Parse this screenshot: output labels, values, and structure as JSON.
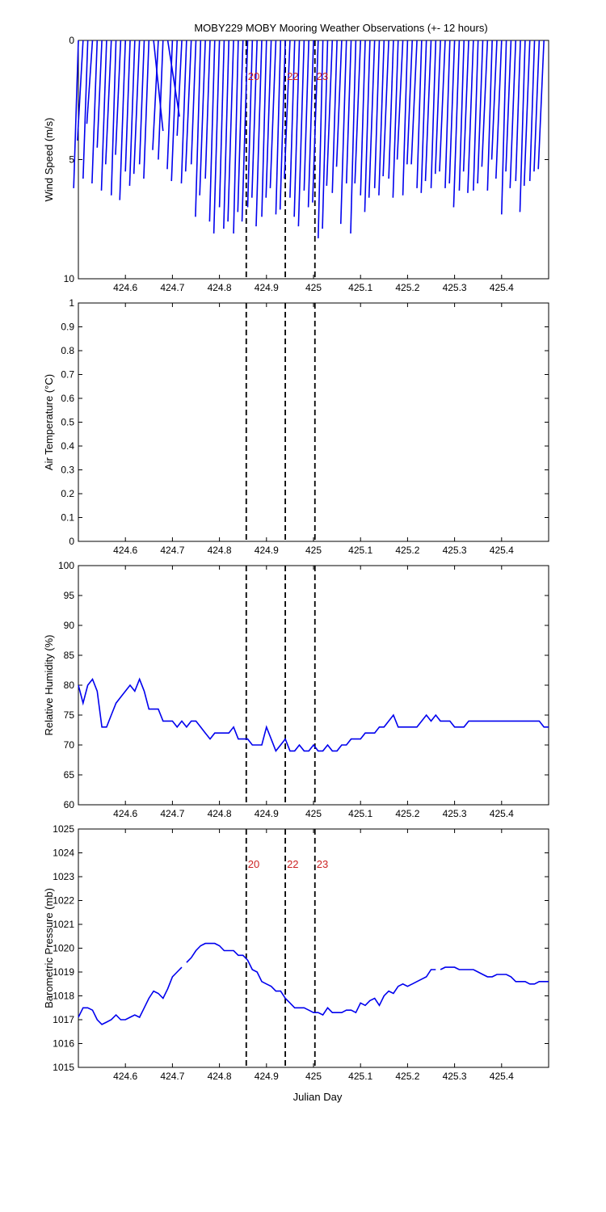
{
  "figure_title": "MOBY229 MOBY Mooring Weather Observations (+- 12 hours)",
  "colors": {
    "data": "#0000ee",
    "event_label": "#cc2222",
    "axis": "#000000"
  },
  "chart_data": [
    {
      "type": "line",
      "subtype": "wind-barbs",
      "title": "MOBY229 MOBY Mooring Weather Observations (+- 12 hours)",
      "ylabel": "Wind Speed (m/s)",
      "xlabel": "",
      "xlim": [
        424.5,
        425.5
      ],
      "ylim": [
        0,
        10
      ],
      "y_reversed": true,
      "xticks": [
        424.6,
        424.7,
        424.8,
        424.9,
        425,
        425.1,
        425.2,
        425.3,
        425.4
      ],
      "yticks": [
        0,
        5,
        10
      ],
      "event_lines": [
        424.857,
        424.94,
        425.003
      ],
      "event_labels": [
        "20",
        "22",
        "23"
      ],
      "series": [
        {
          "x": [
            424.5,
            424.51,
            424.52,
            424.53,
            424.54,
            424.55,
            424.56,
            424.57,
            424.58,
            424.59,
            424.6,
            424.61,
            424.62,
            424.63,
            424.64,
            424.65,
            424.66,
            424.67,
            424.68,
            424.69,
            424.7,
            424.71,
            424.72,
            424.73,
            424.74,
            424.75,
            424.76,
            424.77,
            424.78,
            424.79,
            424.8,
            424.81,
            424.82,
            424.83,
            424.84,
            424.85,
            424.86,
            424.87,
            424.88,
            424.89,
            424.9,
            424.91,
            424.92,
            424.93,
            424.94,
            424.95,
            424.96,
            424.97,
            424.98,
            424.99,
            425,
            425.01,
            425.02,
            425.03,
            425.04,
            425.05,
            425.06,
            425.07,
            425.08,
            425.09,
            425.1,
            425.11,
            425.12,
            425.13,
            425.14,
            425.15,
            425.16,
            425.17,
            425.18,
            425.19,
            425.2,
            425.21,
            425.22,
            425.23,
            425.24,
            425.25,
            425.26,
            425.27,
            425.28,
            425.29,
            425.3,
            425.31,
            425.32,
            425.33,
            425.34,
            425.35,
            425.36,
            425.37,
            425.38,
            425.39,
            425.4,
            425.41,
            425.42,
            425.43,
            425.44,
            425.45,
            425.46,
            425.47,
            425.48,
            425.49
          ],
          "dx": [
            -0.01,
            -0.012,
            -0.01,
            -0.012,
            -0.011,
            -0.01,
            -0.011,
            -0.012,
            -0.01,
            -0.011,
            -0.012,
            -0.01,
            -0.011,
            -0.012,
            -0.01,
            -0.011,
            0.02,
            -0.012,
            -0.01,
            0.025,
            -0.011,
            -0.012,
            -0.01,
            -0.011,
            -0.012,
            -0.01,
            -0.011,
            -0.012,
            -0.01,
            -0.011,
            -0.012,
            -0.01,
            -0.011,
            -0.012,
            -0.01,
            -0.011,
            -0.012,
            -0.01,
            -0.011,
            -0.012,
            -0.01,
            -0.011,
            -0.012,
            -0.01,
            -0.011,
            -0.012,
            -0.01,
            -0.011,
            -0.012,
            -0.01,
            -0.011,
            -0.012,
            -0.01,
            -0.011,
            -0.012,
            -0.01,
            -0.011,
            -0.012,
            -0.01,
            -0.011,
            -0.012,
            -0.01,
            -0.011,
            -0.012,
            -0.01,
            -0.011,
            -0.012,
            -0.01,
            -0.011,
            -0.012,
            -0.01,
            -0.011,
            -0.012,
            -0.01,
            -0.011,
            -0.012,
            -0.01,
            -0.011,
            -0.012,
            -0.01,
            -0.011,
            -0.012,
            -0.01,
            -0.011,
            -0.012,
            -0.01,
            -0.011,
            -0.012,
            -0.01,
            -0.011,
            -0.012,
            -0.01,
            -0.011,
            -0.012,
            -0.01,
            -0.011,
            -0.012,
            -0.01,
            -0.011,
            -0.012
          ],
          "y": [
            6.2,
            4.2,
            5.8,
            3.5,
            6.0,
            4.5,
            6.3,
            5.2,
            6.5,
            4.8,
            6.7,
            5.5,
            6.1,
            5.6,
            5.2,
            5.8,
            3.8,
            4.6,
            5.0,
            3.2,
            5.4,
            5.9,
            4.0,
            6.0,
            5.5,
            5.2,
            7.4,
            6.5,
            5.8,
            7.6,
            8.1,
            7.0,
            7.9,
            7.6,
            8.1,
            7.2,
            7.6,
            7.0,
            6.6,
            7.8,
            7.4,
            6.6,
            6.2,
            7.3,
            7.1,
            5.8,
            6.6,
            7.4,
            7.8,
            6.3,
            7.0,
            6.8,
            8.3,
            7.9,
            6.1,
            6.4,
            5.3,
            7.7,
            6.0,
            8.1,
            6.0,
            6.5,
            7.2,
            6.6,
            6.2,
            6.5,
            5.7,
            5.8,
            6.6,
            5.0,
            6.5,
            5.2,
            5.2,
            6.2,
            6.4,
            5.9,
            6.2,
            5.6,
            5.5,
            6.2,
            6.0,
            7.0,
            6.3,
            5.5,
            6.4,
            6.3,
            6.0,
            5.3,
            6.3,
            5.0,
            5.8,
            7.3,
            5.5,
            6.2,
            5.9,
            7.2,
            6.1,
            5.9,
            5.5,
            5.4
          ]
        }
      ]
    },
    {
      "type": "line",
      "title": "",
      "ylabel": "Air Temperature (°C)",
      "xlabel": "",
      "xlim": [
        424.5,
        425.5
      ],
      "ylim": [
        0,
        1
      ],
      "xticks": [
        424.6,
        424.7,
        424.8,
        424.9,
        425,
        425.1,
        425.2,
        425.3,
        425.4
      ],
      "yticks": [
        0,
        0.1,
        0.2,
        0.3,
        0.4,
        0.5,
        0.6,
        0.7,
        0.8,
        0.9,
        1
      ],
      "event_lines": [
        424.857,
        424.94,
        425.003
      ],
      "series": []
    },
    {
      "type": "line",
      "title": "",
      "ylabel": "Relative Humidity (%)",
      "xlabel": "",
      "xlim": [
        424.5,
        425.5
      ],
      "ylim": [
        60,
        100
      ],
      "xticks": [
        424.6,
        424.7,
        424.8,
        424.9,
        425,
        425.1,
        425.2,
        425.3,
        425.4
      ],
      "yticks": [
        60,
        65,
        70,
        75,
        80,
        85,
        90,
        95,
        100
      ],
      "event_lines": [
        424.857,
        424.94,
        425.003
      ],
      "series": [
        {
          "x": [
            424.5,
            424.51,
            424.52,
            424.53,
            424.54,
            424.55,
            424.56,
            424.57,
            424.58,
            424.59,
            424.6,
            424.61,
            424.62,
            424.63,
            424.64,
            424.65,
            424.66,
            424.67,
            424.68,
            424.69,
            424.7,
            424.71,
            424.72,
            424.73,
            424.74,
            424.75,
            424.76,
            424.77,
            424.78,
            424.79,
            424.8,
            424.81,
            424.82,
            424.83,
            424.84,
            424.85,
            424.86,
            424.87,
            424.88,
            424.89,
            424.9,
            424.91,
            424.92,
            424.93,
            424.94,
            424.95,
            424.96,
            424.97,
            424.98,
            424.99,
            425,
            425.01,
            425.02,
            425.03,
            425.04,
            425.05,
            425.06,
            425.07,
            425.08,
            425.09,
            425.1,
            425.11,
            425.12,
            425.13,
            425.14,
            425.15,
            425.16,
            425.17,
            425.18,
            425.19,
            425.2,
            425.21,
            425.22,
            425.23,
            425.24,
            425.25,
            425.26,
            425.27,
            425.28,
            425.29,
            425.3,
            425.31,
            425.32,
            425.33,
            425.34,
            425.35,
            425.36,
            425.37,
            425.38,
            425.39,
            425.4,
            425.41,
            425.42,
            425.43,
            425.44,
            425.45,
            425.46,
            425.47,
            425.48,
            425.49,
            425.5
          ],
          "y": [
            80,
            77,
            80,
            81,
            79,
            73,
            73,
            75,
            77,
            78,
            79,
            80,
            79,
            81,
            79,
            76,
            76,
            76,
            74,
            74,
            74,
            73,
            74,
            73,
            74,
            74,
            73,
            72,
            71,
            72,
            72,
            72,
            72,
            73,
            71,
            71,
            71,
            70,
            70,
            70,
            73,
            71,
            69,
            70,
            71,
            69,
            69,
            70,
            69,
            69,
            70,
            69,
            69,
            70,
            69,
            69,
            70,
            70,
            71,
            71,
            71,
            72,
            72,
            72,
            73,
            73,
            74,
            75,
            73,
            73,
            73,
            73,
            73,
            74,
            75,
            74,
            75,
            74,
            74,
            74,
            73,
            73,
            73,
            74,
            74,
            74,
            74,
            74,
            74,
            74,
            74,
            74,
            74,
            74,
            74,
            74,
            74,
            74,
            74,
            73,
            73
          ]
        }
      ]
    },
    {
      "type": "line",
      "title": "",
      "ylabel": "Barometric Pressure (mb)",
      "xlabel": "Julian Day",
      "xlim": [
        424.5,
        425.5
      ],
      "ylim": [
        1015,
        1025
      ],
      "xticks": [
        424.6,
        424.7,
        424.8,
        424.9,
        425,
        425.1,
        425.2,
        425.3,
        425.4
      ],
      "yticks": [
        1015,
        1016,
        1017,
        1018,
        1019,
        1020,
        1021,
        1022,
        1023,
        1024,
        1025
      ],
      "event_lines": [
        424.857,
        424.94,
        425.003
      ],
      "event_labels": [
        "20",
        "22",
        "23"
      ],
      "series": [
        {
          "x": [
            424.5,
            424.51,
            424.52,
            424.53,
            424.54,
            424.55,
            424.56,
            424.57,
            424.58,
            424.59,
            424.6,
            424.61,
            424.62,
            424.63,
            424.64,
            424.65,
            424.66,
            424.67,
            424.68,
            424.69,
            424.7,
            424.71,
            424.72,
            424.73,
            424.74,
            424.75,
            424.76,
            424.77,
            424.78,
            424.79,
            424.8,
            424.81,
            424.82,
            424.83,
            424.84,
            424.85,
            424.86,
            424.87,
            424.88,
            424.89,
            424.9,
            424.91,
            424.92,
            424.93,
            424.94,
            424.95,
            424.96,
            424.97,
            424.98,
            424.99,
            425,
            425.01,
            425.02,
            425.03,
            425.04,
            425.05,
            425.06,
            425.07,
            425.08,
            425.09,
            425.1,
            425.11,
            425.12,
            425.13,
            425.14,
            425.15,
            425.16,
            425.17,
            425.18,
            425.19,
            425.2,
            425.21,
            425.22,
            425.23,
            425.24,
            425.25,
            425.26,
            425.27,
            425.28,
            425.29,
            425.3,
            425.31,
            425.32,
            425.33,
            425.34,
            425.35,
            425.36,
            425.37,
            425.38,
            425.39,
            425.4,
            425.41,
            425.42,
            425.43,
            425.44,
            425.45,
            425.46,
            425.47,
            425.48,
            425.49,
            425.5
          ],
          "y": [
            1017.1,
            1017.5,
            1017.5,
            1017.4,
            1017.0,
            1016.8,
            1016.9,
            1017.0,
            1017.2,
            1017.0,
            1017.0,
            1017.1,
            1017.2,
            1017.1,
            1017.5,
            1017.9,
            1018.2,
            1018.1,
            1017.9,
            1018.3,
            1018.8,
            1019.0,
            1019.2,
            1019.4,
            1019.6,
            1019.9,
            1020.1,
            1020.2,
            1020.2,
            1020.2,
            1020.1,
            1019.9,
            1019.9,
            1019.9,
            1019.7,
            1019.7,
            1019.5,
            1019.1,
            1019.0,
            1018.6,
            1018.5,
            1018.4,
            1018.2,
            1018.2,
            1017.9,
            1017.7,
            1017.5,
            1017.5,
            1017.5,
            1017.4,
            1017.3,
            1017.3,
            1017.2,
            1017.5,
            1017.3,
            1017.3,
            1017.3,
            1017.4,
            1017.4,
            1017.3,
            1017.7,
            1017.6,
            1017.8,
            1017.9,
            1017.6,
            1018.0,
            1018.2,
            1018.1,
            1018.4,
            1018.5,
            1018.4,
            1018.5,
            1018.6,
            1018.7,
            1018.8,
            1019.1,
            1019.1,
            1019.1,
            1019.2,
            1019.2,
            1019.2,
            1019.1,
            1019.1,
            1019.1,
            1019.1,
            1019.0,
            1018.9,
            1018.8,
            1018.8,
            1018.9,
            1018.9,
            1018.9,
            1018.8,
            1018.6,
            1018.6,
            1018.6,
            1018.5,
            1018.5,
            1018.6,
            1018.6,
            1018.6
          ],
          "gaps_after_x": [
            424.72,
            425.26
          ]
        }
      ]
    }
  ]
}
